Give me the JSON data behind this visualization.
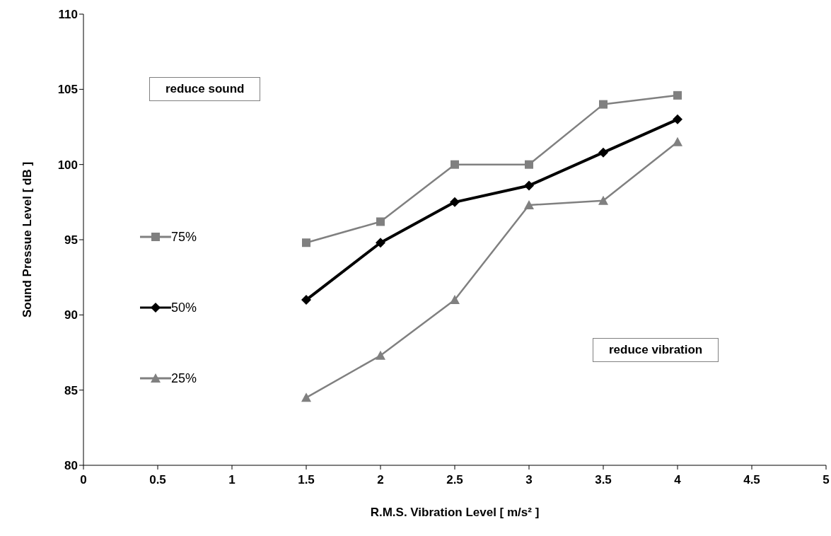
{
  "chart_data": {
    "type": "line",
    "xlabel": "R.M.S. Vibration Level [ m/s² ]",
    "ylabel": "Sound Pressue Level [ dB ]",
    "x": [
      1.5,
      2,
      2.5,
      3,
      3.5,
      4
    ],
    "series": [
      {
        "name": "75%",
        "color": "#808080",
        "marker": "square",
        "values": [
          94.8,
          96.2,
          100,
          100,
          104,
          104.6
        ]
      },
      {
        "name": "50%",
        "color": "#000000",
        "marker": "diamond",
        "values": [
          91,
          94.8,
          97.5,
          98.6,
          100.8,
          103
        ]
      },
      {
        "name": "25%",
        "color": "#808080",
        "marker": "triangle",
        "values": [
          84.5,
          87.3,
          91,
          97.3,
          97.6,
          101.5
        ]
      }
    ],
    "xlim": [
      0,
      5
    ],
    "xticks": [
      0,
      0.5,
      1,
      1.5,
      2,
      2.5,
      3,
      3.5,
      4,
      4.5,
      5
    ],
    "ylim": [
      80,
      110
    ],
    "yticks": [
      80,
      85,
      90,
      95,
      100,
      105,
      110
    ],
    "grid": false,
    "legend": "left",
    "line_style": "solid",
    "annotations": [
      "reduce sound",
      "reduce vibration"
    ]
  }
}
